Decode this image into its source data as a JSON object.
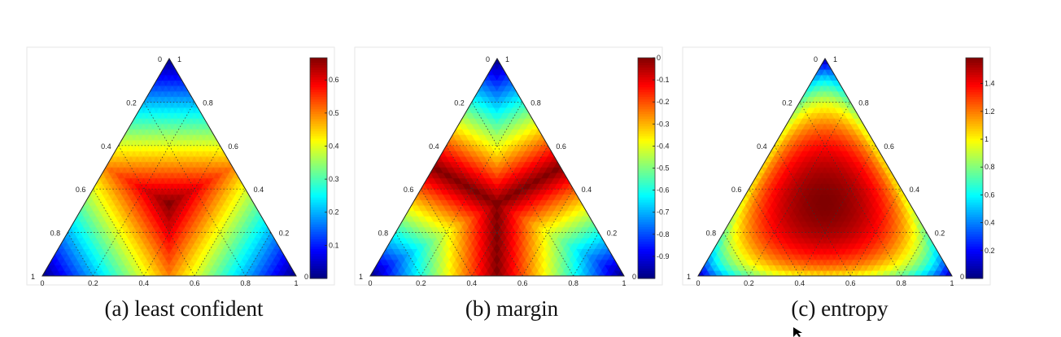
{
  "colormap": "jet",
  "chart_data": [
    {
      "type": "heatmap",
      "caption": "(a) least confident",
      "measure": "least_confident",
      "edge_ticks": [
        "0",
        "0.2",
        "0.4",
        "0.6",
        "0.8",
        "1"
      ],
      "colorbar_ticks": [
        "0.6",
        "0.5",
        "0.4",
        "0.3",
        "0.2",
        "0.1"
      ],
      "colorbar_values": [
        0.6,
        0.5,
        0.4,
        0.3,
        0.2,
        0.1
      ],
      "colorbar_range": [
        0,
        0.667
      ],
      "value_range": [
        0,
        0.667
      ]
    },
    {
      "type": "heatmap",
      "caption": "(b) margin",
      "measure": "margin",
      "edge_ticks": [
        "0",
        "0.2",
        "0.4",
        "0.6",
        "0.8",
        "1"
      ],
      "colorbar_ticks": [
        "0",
        "-0.1",
        "-0.2",
        "-0.3",
        "-0.4",
        "-0.5",
        "-0.6",
        "-0.7",
        "-0.8",
        "-0.9"
      ],
      "colorbar_values": [
        0,
        -0.1,
        -0.2,
        -0.3,
        -0.4,
        -0.5,
        -0.6,
        -0.7,
        -0.8,
        -0.9
      ],
      "colorbar_range": [
        -1,
        0
      ],
      "value_range": [
        -1,
        0
      ]
    },
    {
      "type": "heatmap",
      "caption": "(c) entropy",
      "measure": "entropy",
      "edge_ticks": [
        "0",
        "0.2",
        "0.4",
        "0.6",
        "0.8",
        "1"
      ],
      "colorbar_ticks": [
        "1.4",
        "1.2",
        "1",
        "0.8",
        "0.6",
        "0.4",
        "0.2"
      ],
      "colorbar_values": [
        1.4,
        1.2,
        1.0,
        0.8,
        0.6,
        0.4,
        0.2
      ],
      "colorbar_range": [
        0,
        1.585
      ],
      "value_range": [
        0,
        1.585
      ]
    }
  ]
}
